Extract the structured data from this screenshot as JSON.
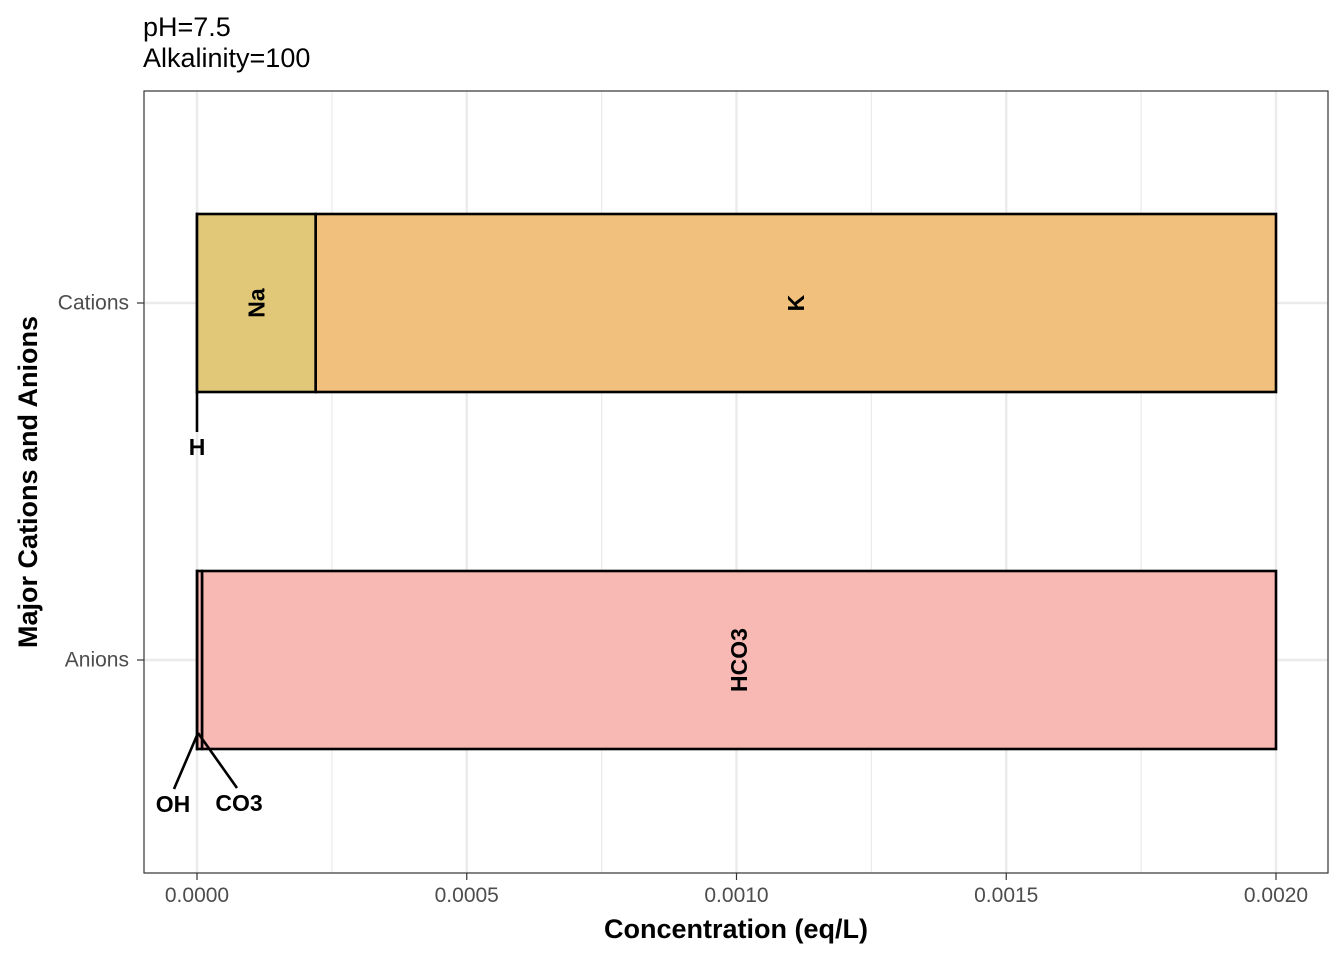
{
  "subtitle_lines": [
    "pH=7.5",
    "Alkalinity=100"
  ],
  "chart_data": {
    "type": "bar",
    "orientation": "horizontal",
    "stacked": true,
    "xlabel": "Concentration (eq/L)",
    "ylabel": "Major Cations and Anions",
    "xlim": [
      -0.0001,
      0.00209
    ],
    "x_ticks": [
      0.0,
      0.0005,
      0.001,
      0.0015,
      0.002
    ],
    "x_tick_labels": [
      "0.0000",
      "0.0005",
      "0.0010",
      "0.0015",
      "0.0020"
    ],
    "categories": [
      "Cations",
      "Anions"
    ],
    "grid": true,
    "legend": "none",
    "bars": [
      {
        "category": "Cations",
        "segments": [
          {
            "name": "H",
            "start": 0.0,
            "end": 3e-08,
            "color": "#e0c878",
            "label_placement": "callout-below"
          },
          {
            "name": "Na",
            "start": 3e-08,
            "end": 0.00022,
            "color": "#e0c878",
            "label_placement": "inside"
          },
          {
            "name": "K",
            "start": 0.00022,
            "end": 0.002,
            "color": "#f0c07c",
            "label_placement": "inside"
          }
        ]
      },
      {
        "category": "Anions",
        "segments": [
          {
            "name": "OH",
            "start": 0.0,
            "end": 3e-07,
            "color": "#f8b8b4",
            "label_placement": "callout-below-left"
          },
          {
            "name": "CO3",
            "start": 3e-07,
            "end": 9.5e-06,
            "color": "#f8b8b4",
            "label_placement": "callout-below-right"
          },
          {
            "name": "HCO3",
            "start": 9.5e-06,
            "end": 0.002,
            "color": "#f8b8b4",
            "label_placement": "inside"
          }
        ]
      }
    ]
  }
}
